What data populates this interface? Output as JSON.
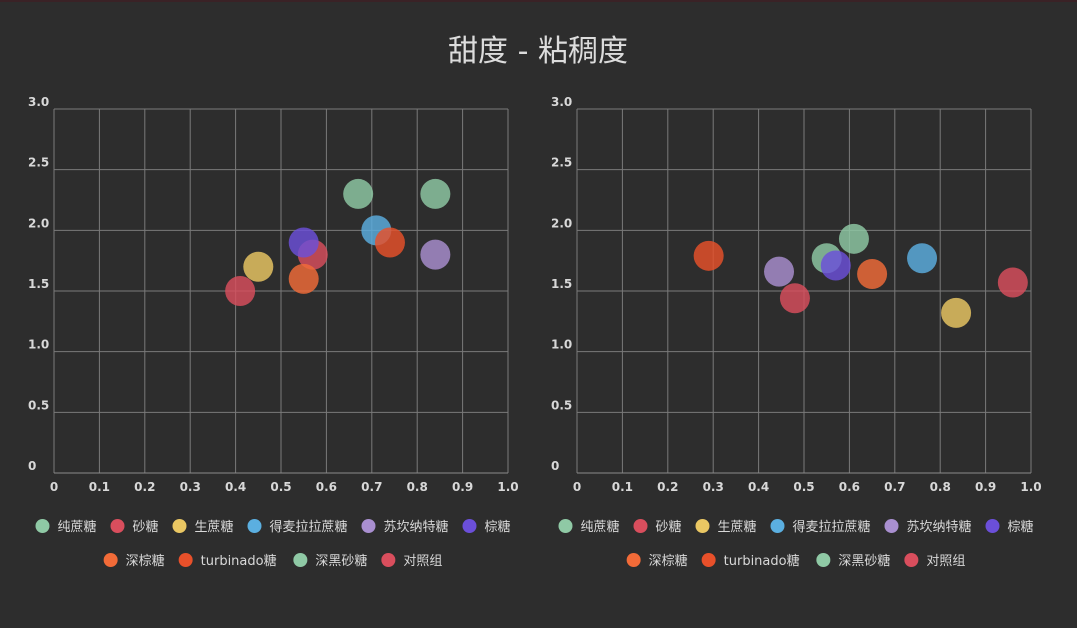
{
  "title": "甜度 - 粘稠度",
  "chart_data": [
    {
      "type": "scatter",
      "xlim": [
        0,
        1.0
      ],
      "ylim": [
        0,
        3.0
      ],
      "x_ticks": [
        "0",
        "0.1",
        "0.2",
        "0.3",
        "0.4",
        "0.5",
        "0.6",
        "0.7",
        "0.8",
        "0.9",
        "1.0"
      ],
      "y_ticks": [
        "0",
        "0.5",
        "1.0",
        "1.5",
        "2.0",
        "2.5",
        "3.0"
      ],
      "grid": true,
      "legend_position": "bottom",
      "series": [
        {
          "name": "纯蔗糖",
          "color": "#8fc9a5",
          "points": [
            [
              0.67,
              2.3
            ]
          ]
        },
        {
          "name": "砂糖",
          "color": "#d94e5d",
          "points": [
            [
              0.57,
              1.8
            ]
          ]
        },
        {
          "name": "生蔗糖",
          "color": "#eac763",
          "points": [
            [
              0.45,
              1.7
            ]
          ]
        },
        {
          "name": "得麦拉拉蔗糖",
          "color": "#5bafe0",
          "points": [
            [
              0.71,
              2.0
            ]
          ]
        },
        {
          "name": "苏坎纳特糖",
          "color": "#a98fd0",
          "points": [
            [
              0.84,
              1.8
            ]
          ]
        },
        {
          "name": "棕糖",
          "color": "#6b4fd9",
          "points": [
            [
              0.55,
              1.9
            ]
          ]
        },
        {
          "name": "深棕糖",
          "color": "#f26b38",
          "points": [
            [
              0.55,
              1.6
            ]
          ]
        },
        {
          "name": "turbinado糖",
          "color": "#e8502a",
          "points": [
            [
              0.74,
              1.9
            ]
          ]
        },
        {
          "name": "深黑砂糖",
          "color": "#8fc9a5",
          "points": [
            [
              0.84,
              2.3
            ]
          ]
        },
        {
          "name": "对照组",
          "color": "#d94e5d",
          "points": [
            [
              0.41,
              1.5
            ]
          ]
        }
      ]
    },
    {
      "type": "scatter",
      "xlim": [
        0,
        1.0
      ],
      "ylim": [
        0,
        3.0
      ],
      "x_ticks": [
        "0",
        "0.1",
        "0.2",
        "0.3",
        "0.4",
        "0.5",
        "0.6",
        "0.7",
        "0.8",
        "0.9",
        "1.0"
      ],
      "y_ticks": [
        "0",
        "0.5",
        "1.0",
        "1.5",
        "2.0",
        "2.5",
        "3.0"
      ],
      "grid": true,
      "legend_position": "bottom",
      "series": [
        {
          "name": "纯蔗糖",
          "color": "#8fc9a5",
          "points": [
            [
              0.55,
              1.77
            ]
          ]
        },
        {
          "name": "砂糖",
          "color": "#d94e5d",
          "points": [
            [
              0.48,
              1.44
            ]
          ]
        },
        {
          "name": "生蔗糖",
          "color": "#eac763",
          "points": [
            [
              0.835,
              1.32
            ]
          ]
        },
        {
          "name": "得麦拉拉蔗糖",
          "color": "#5bafe0",
          "points": [
            [
              0.76,
              1.77
            ]
          ]
        },
        {
          "name": "苏坎纳特糖",
          "color": "#a98fd0",
          "points": [
            [
              0.445,
              1.66
            ]
          ]
        },
        {
          "name": "棕糖",
          "color": "#6b4fd9",
          "points": [
            [
              0.57,
              1.71
            ]
          ]
        },
        {
          "name": "深棕糖",
          "color": "#f26b38",
          "points": [
            [
              0.65,
              1.64
            ]
          ]
        },
        {
          "name": "turbinado糖",
          "color": "#e8502a",
          "points": [
            [
              0.29,
              1.79
            ]
          ]
        },
        {
          "name": "深黑砂糖",
          "color": "#8fc9a5",
          "points": [
            [
              0.61,
              1.93
            ]
          ]
        },
        {
          "name": "对照组",
          "color": "#d94e5d",
          "points": [
            [
              0.96,
              1.57
            ]
          ]
        }
      ]
    }
  ]
}
